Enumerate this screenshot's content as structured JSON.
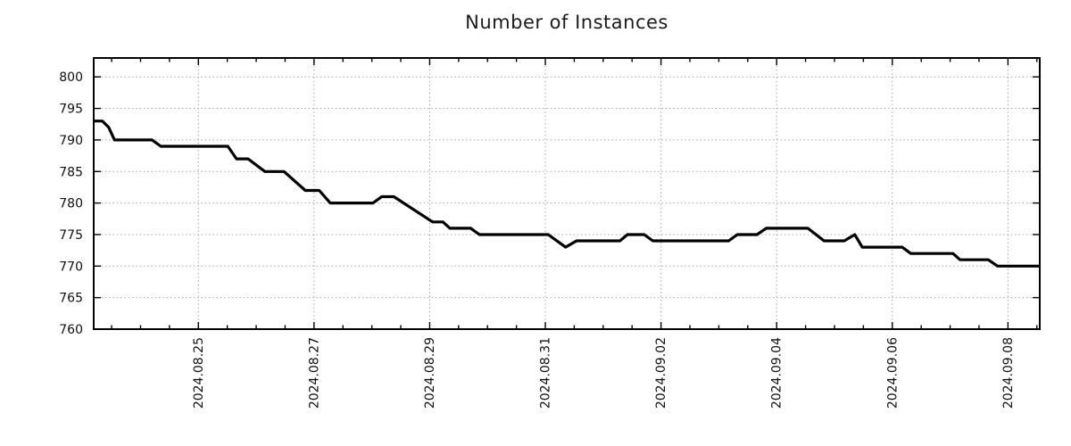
{
  "chart_data": {
    "type": "line",
    "title": "Number of Instances",
    "grid": "dotted",
    "legend": false,
    "x_axis": {
      "label": "",
      "range_days": [
        -1.81,
        14.55
      ],
      "tick_positions_days": [
        0,
        2,
        4,
        6,
        8,
        10,
        12,
        14
      ],
      "tick_labels": [
        "2024.08.25",
        "2024.08.27",
        "2024.08.29",
        "2024.08.31",
        "2024.09.02",
        "2024.09.04",
        "2024.09.06",
        "2024.09.08"
      ],
      "minor_tick_interval_days": 0.5,
      "tick_label_rotation_deg": 90
    },
    "y_axis": {
      "label": "",
      "range": [
        760,
        803
      ],
      "ticks": [
        760,
        765,
        770,
        775,
        780,
        785,
        790,
        795,
        800
      ]
    },
    "series": [
      {
        "name": "Number of Instances",
        "color": "#000000",
        "points": [
          [
            -1.81,
            793
          ],
          [
            -1.66,
            793
          ],
          [
            -1.55,
            792
          ],
          [
            -1.45,
            790
          ],
          [
            -0.8,
            790
          ],
          [
            -0.65,
            789
          ],
          [
            0.51,
            789
          ],
          [
            0.66,
            787
          ],
          [
            0.86,
            787
          ],
          [
            1.15,
            785
          ],
          [
            1.48,
            785
          ],
          [
            1.85,
            782
          ],
          [
            2.09,
            782
          ],
          [
            2.28,
            780
          ],
          [
            3.02,
            780
          ],
          [
            3.17,
            781
          ],
          [
            3.38,
            781
          ],
          [
            4.05,
            777
          ],
          [
            4.23,
            777
          ],
          [
            4.35,
            776
          ],
          [
            4.71,
            776
          ],
          [
            4.86,
            775
          ],
          [
            6.05,
            775
          ],
          [
            6.35,
            773
          ],
          [
            6.54,
            774
          ],
          [
            7.29,
            774
          ],
          [
            7.42,
            775
          ],
          [
            7.71,
            775
          ],
          [
            7.86,
            774
          ],
          [
            9.17,
            774
          ],
          [
            9.32,
            775
          ],
          [
            9.66,
            775
          ],
          [
            9.82,
            776
          ],
          [
            10.54,
            776
          ],
          [
            10.82,
            774
          ],
          [
            11.17,
            774
          ],
          [
            11.35,
            775
          ],
          [
            11.48,
            773
          ],
          [
            12.17,
            773
          ],
          [
            12.32,
            772
          ],
          [
            13.05,
            772
          ],
          [
            13.17,
            771
          ],
          [
            13.66,
            771
          ],
          [
            13.82,
            770
          ],
          [
            14.55,
            770
          ]
        ]
      }
    ]
  }
}
